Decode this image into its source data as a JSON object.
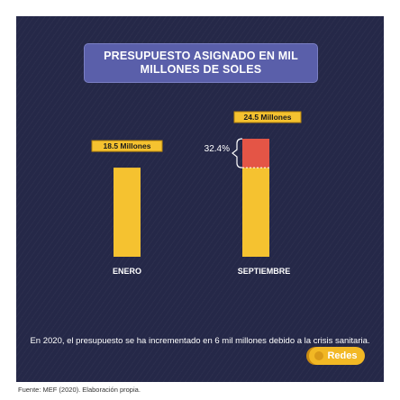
{
  "title_line1": "PRESUPUESTO ASIGNADO EN MIL",
  "title_line2": "MILLONES DE SOLES",
  "chart_data": {
    "type": "bar",
    "categories": [
      "ENERO",
      "SEPTIEMBRE"
    ],
    "values": [
      18.5,
      24.5
    ],
    "value_labels": [
      "18.5 Millones",
      "24.5 Millones"
    ],
    "increase_value": 6,
    "increase_label": "32.4%",
    "bar_color": "#f5c230",
    "increase_color": "#e45546"
  },
  "footnote": "En 2020, el presupuesto se ha incrementado en 6 mil millones debido a la crisis sanitaria.",
  "badge": "Redes",
  "source": "Fuente: MEF (2020). Elaboración propia."
}
